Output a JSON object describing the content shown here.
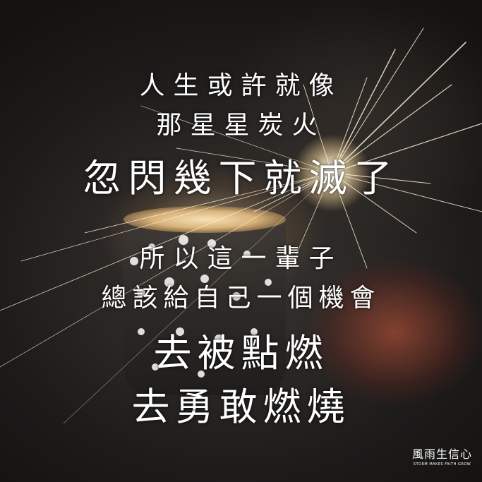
{
  "poem": {
    "line1": "人生或許就像",
    "line2": "那星星炭火",
    "line3": "忽閃幾下就滅了",
    "line4": "所以這一輩子",
    "line5": "總該給自己一個機會",
    "line6": "去被點燃",
    "line7": "去勇敢燃燒"
  },
  "logo": {
    "main": "風雨生信心",
    "sub": "STORM MAKES FAITH GROW"
  },
  "colors": {
    "text": "#ffffff",
    "background": "#1d1b1a",
    "spark": "#fff3d6"
  }
}
